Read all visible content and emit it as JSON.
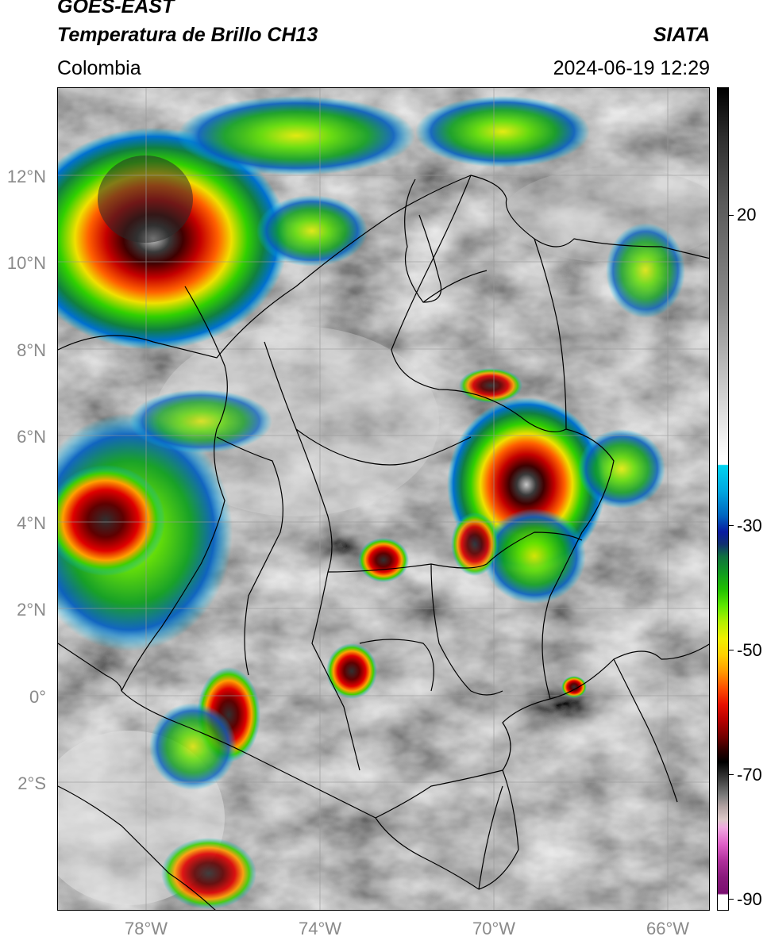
{
  "header": {
    "title_line1": "GOES-EAST",
    "title_line2": "Temperatura de Brillo CH13",
    "brand": "SIATA",
    "region": "Colombia",
    "datetime": "2024-06-19 12:29"
  },
  "axes": {
    "lat_labels": [
      "12°N",
      "10°N",
      "8°N",
      "6°N",
      "4°N",
      "2°N",
      "0°",
      "2°S"
    ],
    "lon_labels": [
      "78°W",
      "74°W",
      "70°W",
      "66°W"
    ]
  },
  "colorbar": {
    "labels": [
      "20",
      "-30",
      "-50",
      "-70",
      "-90"
    ]
  }
}
